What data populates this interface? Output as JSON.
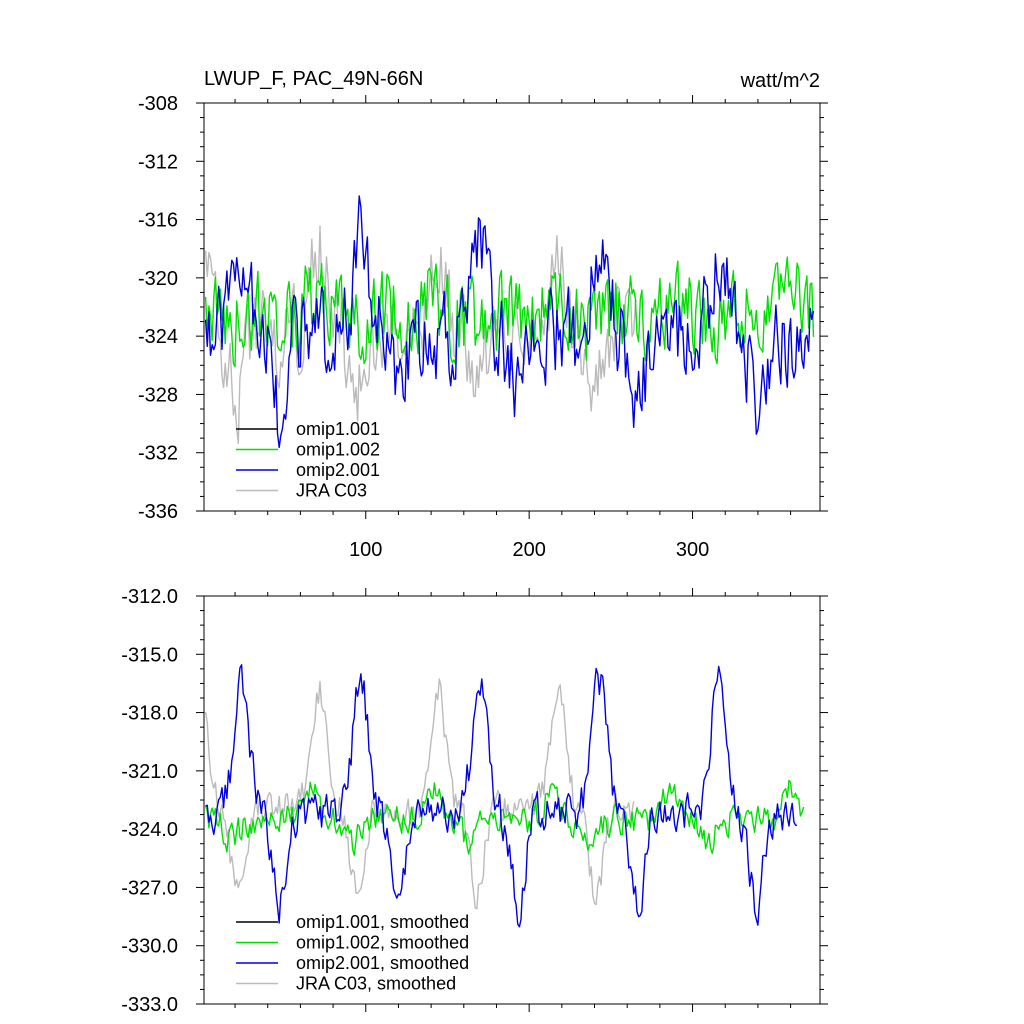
{
  "chart_data": [
    {
      "type": "line",
      "title": "LWUP_F, PAC_49N-66N",
      "units_label": "watt/m^2",
      "xlim": [
        1,
        378
      ],
      "ylim": [
        -336,
        -308
      ],
      "y_ticks": [
        -308,
        -312,
        -316,
        -320,
        -324,
        -328,
        -332,
        -336
      ],
      "y_tick_labels": [
        "-308",
        "-312",
        "-316",
        "-320",
        "-324",
        "-328",
        "-332",
        "-336"
      ],
      "x_ticks": [
        100,
        200,
        300
      ],
      "x_tick_labels": [
        "100",
        "200",
        "300"
      ],
      "legend_position": "bottom-left",
      "series": [
        {
          "name": "omip1.001",
          "color": "#000000",
          "visible": false,
          "n": 373
        },
        {
          "name": "omip1.002",
          "color": "#00e000",
          "mean": -322.5,
          "amp": 1.2,
          "noise": 2.6,
          "phase": 0.6,
          "n": 373
        },
        {
          "name": "omip2.001",
          "color": "#0000e0",
          "mean": -324.0,
          "amp": 6.5,
          "noise": 2.8,
          "phase": 0.2,
          "n": 373
        },
        {
          "name": "JRA C03",
          "color": "#bbbbbb",
          "mean": -323.8,
          "amp": 6.0,
          "noise": 2.6,
          "phase": 0.55,
          "n": 265
        }
      ]
    },
    {
      "type": "line",
      "title": "",
      "xlim": [
        1,
        378
      ],
      "ylim": [
        -333,
        -312
      ],
      "y_ticks": [
        -312,
        -315,
        -318,
        -321,
        -324,
        -327,
        -330,
        -333
      ],
      "y_tick_labels": [
        "-312.0",
        "-315.0",
        "-318.0",
        "-321.0",
        "-324.0",
        "-327.0",
        "-330.0",
        "-333.0"
      ],
      "x_ticks": [
        100,
        200,
        300
      ],
      "x_tick_labels": [
        "",
        "",
        ""
      ],
      "legend_position": "bottom-left",
      "series": [
        {
          "name": "omip1.001, smoothed",
          "color": "#000000",
          "visible": false,
          "n": 373
        },
        {
          "name": "omip1.002, smoothed",
          "color": "#00e000",
          "mean": -323.5,
          "amp": 1.6,
          "noise": 0.7,
          "phase": 0.6,
          "n": 367
        },
        {
          "name": "omip2.001, smoothed",
          "color": "#0000e0",
          "mean": -323.2,
          "amp": 6.8,
          "noise": 0.9,
          "phase": 0.2,
          "n": 363
        },
        {
          "name": "JRA C03, smoothed",
          "color": "#bbbbbb",
          "mean": -323.0,
          "amp": 6.3,
          "noise": 0.8,
          "phase": 0.55,
          "n": 263
        }
      ]
    }
  ]
}
